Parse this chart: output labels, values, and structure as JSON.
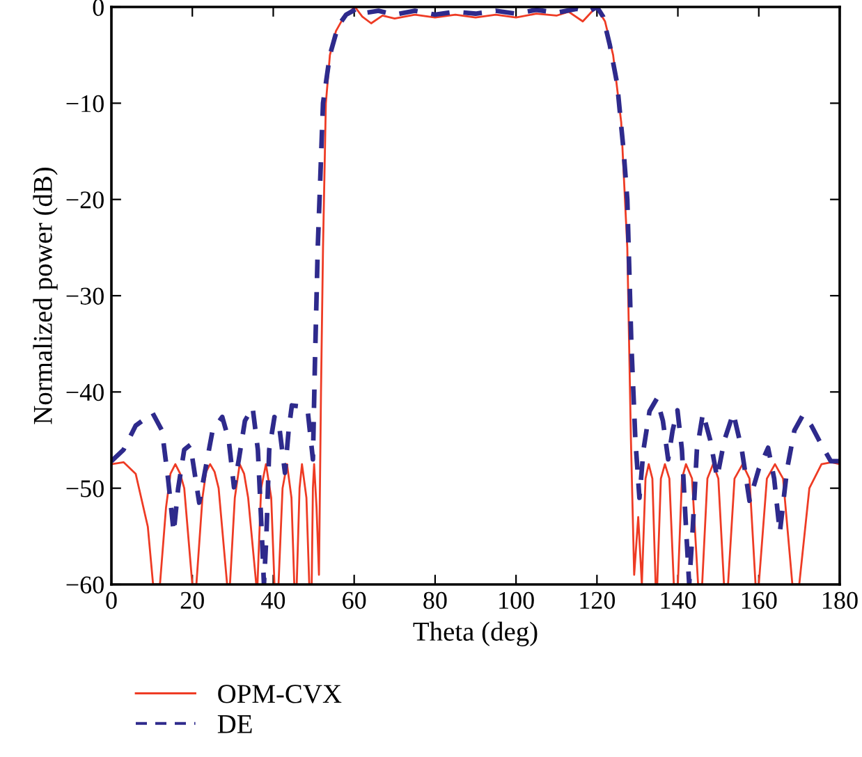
{
  "chart_data": {
    "type": "line",
    "xlabel": "Theta (deg)",
    "ylabel": "Normalized power (dB)",
    "xlim": [
      0,
      180
    ],
    "ylim": [
      -60,
      0
    ],
    "xticks": [
      0,
      20,
      40,
      60,
      80,
      100,
      120,
      140,
      160,
      180
    ],
    "yticks": [
      -60,
      -50,
      -40,
      -30,
      -20,
      -10,
      0
    ],
    "grid": false,
    "legend": "bottom",
    "marker": "none",
    "series": [
      {
        "name": "OPM-CVX",
        "color": "#ee3b24",
        "line_style": "solid",
        "x": [
          0,
          3,
          6,
          9,
          10.3,
          12,
          13.5,
          14.6,
          15.8,
          17,
          18,
          20,
          21,
          22.5,
          23.4,
          24.4,
          25.5,
          26.5,
          28.6,
          29.3,
          30.5,
          31.7,
          32.8,
          33.8,
          35.8,
          36.1,
          37,
          38.2,
          39.5,
          40.3,
          41.3,
          42.3,
          43.4,
          44.5,
          45.2,
          45.8,
          46.5,
          47.1,
          48.2,
          48.9,
          49.5,
          49.8,
          50.1,
          50.7,
          51.3,
          51.8,
          52.3,
          53,
          54,
          55.5,
          57.5,
          60.2,
          62,
          64.2,
          67,
          70,
          75,
          80,
          85,
          90,
          95,
          100,
          105,
          110,
          113,
          116.5,
          119.8,
          122,
          124,
          126,
          127.5,
          128.4,
          129.2,
          130.2,
          131.1,
          132,
          132.8,
          133.7,
          134.5,
          134.9,
          135.8,
          136.8,
          137.9,
          139,
          140,
          141,
          142,
          143.5,
          145,
          146,
          147.3,
          148.7,
          150,
          151.4,
          152.4,
          154,
          156,
          157.7,
          159.2,
          160,
          162,
          164,
          166,
          168.3,
          170,
          172.5,
          175.5,
          178,
          180
        ],
        "values": [
          -47.5,
          -47.3,
          -48.5,
          -54,
          -60,
          -60,
          -52,
          -48.5,
          -47.5,
          -48.5,
          -50,
          -60,
          -60,
          -51,
          -48.3,
          -47.5,
          -48.3,
          -50,
          -60,
          -60,
          -51,
          -47.5,
          -48.5,
          -51,
          -60,
          -60,
          -50,
          -47.5,
          -51,
          -60,
          -60,
          -50,
          -47.5,
          -51,
          -60,
          -60,
          -50,
          -47.5,
          -51,
          -60,
          -60,
          -50,
          -47.5,
          -52,
          -59,
          -40,
          -25,
          -10,
          -5,
          -2.5,
          -1,
          0,
          -1,
          -1.7,
          -0.9,
          -1.2,
          -0.8,
          -1.1,
          -0.8,
          -1.1,
          -0.8,
          -1.1,
          -0.7,
          -0.9,
          -0.5,
          -1.5,
          0,
          -1.5,
          -5,
          -12,
          -25,
          -45,
          -59,
          -53,
          -60,
          -49,
          -47.5,
          -49,
          -60,
          -60,
          -49,
          -47.5,
          -49,
          -60,
          -60,
          -49,
          -47.5,
          -49,
          -60,
          -60,
          -49,
          -47.5,
          -49,
          -60,
          -60,
          -49,
          -47.5,
          -49,
          -60,
          -60,
          -49,
          -47.5,
          -49,
          -60,
          -60,
          -50,
          -47.5,
          -47.3,
          -47.5
        ]
      },
      {
        "name": "DE",
        "color": "#2e2a8c",
        "line_style": "dashed",
        "x": [
          0,
          3,
          6,
          10.2,
          12.5,
          14,
          15.4,
          16.5,
          18,
          19.5,
          21.7,
          22.8,
          25,
          27.4,
          29,
          30.3,
          31.5,
          33,
          34.9,
          36.2,
          37.2,
          37.7,
          38.3,
          39,
          40.3,
          41.6,
          42.9,
          43.8,
          44.6,
          46.5,
          48.5,
          49.8,
          50.3,
          51,
          52.3,
          54,
          56,
          58,
          61,
          63,
          66,
          70,
          75,
          80,
          85,
          90,
          95,
          100,
          105,
          110,
          115,
          118,
          120,
          121.5,
          123.2,
          125,
          126.6,
          127.5,
          128.5,
          129.5,
          130.5,
          131.5,
          133,
          134.8,
          136.3,
          137.6,
          138.7,
          139.9,
          141,
          142,
          142.8,
          143.7,
          144.7,
          146.2,
          148,
          149.7,
          151.5,
          153.7,
          155.8,
          157.7,
          160,
          162.3,
          163.8,
          165.2,
          167,
          168.8,
          170.9,
          173,
          175.5,
          177.8,
          180
        ],
        "values": [
          -47.2,
          -46,
          -43.5,
          -42.2,
          -44,
          -49,
          -54.6,
          -50,
          -46,
          -45.5,
          -51.5,
          -49,
          -44,
          -42.6,
          -45,
          -49.9,
          -47,
          -43,
          -41.6,
          -46,
          -55,
          -60,
          -55,
          -46,
          -42.6,
          -44,
          -48.4,
          -44,
          -41.4,
          -41.5,
          -41.9,
          -47,
          -37,
          -25,
          -10,
          -5,
          -2,
          -0.8,
          -0.1,
          -0.6,
          -0.4,
          -0.8,
          -0.4,
          -0.8,
          -0.5,
          -0.7,
          -0.4,
          -0.7,
          -0.3,
          -0.6,
          -0.2,
          -0.5,
          0,
          -1,
          -4,
          -8,
          -15,
          -20,
          -35,
          -45,
          -51,
          -46,
          -42,
          -40.7,
          -43,
          -47,
          -44,
          -41.9,
          -46,
          -54,
          -60,
          -54,
          -46,
          -42.2,
          -45,
          -48.9,
          -45,
          -42.2,
          -46,
          -51.3,
          -48,
          -45.8,
          -49,
          -54.6,
          -48,
          -44,
          -42.4,
          -43.5,
          -45.5,
          -47.2,
          -47.2
        ]
      }
    ]
  }
}
